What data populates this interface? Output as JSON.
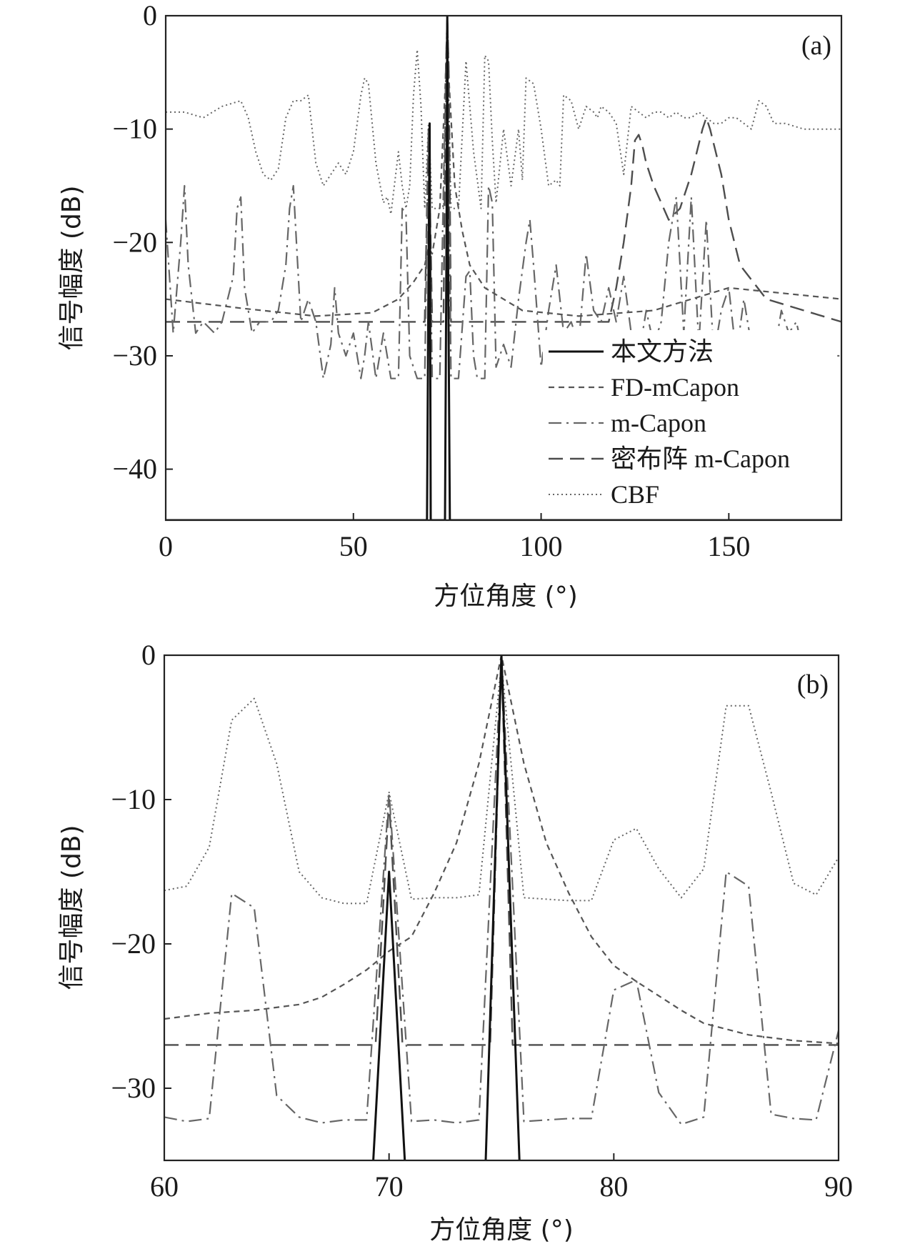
{
  "chart_data": [
    {
      "type": "line",
      "panel_label": "(a)",
      "xlabel": "方位角度 (°)",
      "ylabel": "信号幅度 (dB)",
      "xlim": [
        0,
        180
      ],
      "ylim": [
        -44.5,
        0
      ],
      "xticks": [
        0,
        50,
        100,
        150
      ],
      "yticks": [
        0,
        -10,
        -20,
        -30,
        -40
      ],
      "grid": false,
      "legend": "lower-right",
      "series": [
        {
          "name": "本文方法",
          "style": "solid",
          "color": "#111111",
          "x": [
            0,
            69.6,
            70.0,
            70.3,
            70.6,
            72.5,
            72.9,
            74.4,
            74.8,
            75.0,
            75.2,
            75.7,
            76.2,
            180
          ],
          "y": [
            -44.5,
            -44.5,
            -23,
            -9.5,
            -44.5,
            -44.5,
            -44.5,
            -44.5,
            -20,
            0,
            -20,
            -44.5,
            -44.5,
            -44.5
          ]
        },
        {
          "name": "FD-mCapon",
          "style": "dashed-short",
          "color": "#555555",
          "x": [
            0,
            20,
            40,
            55,
            62,
            66,
            69,
            70,
            71,
            73,
            74.5,
            75,
            75.5,
            77,
            79,
            81,
            85,
            95,
            110,
            130,
            150,
            165,
            180
          ],
          "y": [
            -25,
            -25.8,
            -26.5,
            -26.2,
            -25,
            -23.5,
            -22,
            -20.5,
            -21,
            -17,
            -6,
            0,
            -6,
            -15,
            -19,
            -22,
            -24,
            -26,
            -26.5,
            -26,
            -24,
            -24.5,
            -25
          ]
        },
        {
          "name": "m-Capon",
          "style": "dash-dot",
          "color": "#666666",
          "x": [
            0,
            2,
            4,
            5,
            6,
            8,
            10,
            13,
            15,
            18,
            19,
            20,
            21,
            23,
            25,
            28,
            30,
            32,
            33,
            34,
            35,
            36,
            38,
            40,
            42,
            44,
            45,
            46,
            48,
            50,
            52,
            53,
            54,
            56,
            58,
            60,
            62,
            63,
            64,
            65,
            67,
            69,
            70,
            71,
            72,
            73,
            74,
            75,
            76,
            77,
            78,
            80,
            81,
            82,
            83,
            85,
            86,
            87,
            88,
            90,
            92,
            94,
            96,
            97,
            98,
            100,
            102,
            104,
            106,
            108,
            110,
            112,
            114,
            116,
            118,
            120,
            122,
            124,
            126,
            128,
            130,
            132,
            134,
            136,
            138,
            140,
            142,
            144,
            146,
            148,
            150,
            152,
            154,
            156,
            158,
            160,
            162,
            164,
            166,
            168,
            170,
            172,
            174,
            176,
            178,
            180
          ],
          "y": [
            -18,
            -28,
            -20,
            -15,
            -22,
            -28,
            -27,
            -28,
            -27,
            -23,
            -17,
            -16,
            -24,
            -28,
            -27,
            -27,
            -26,
            -22,
            -17,
            -15,
            -21,
            -27,
            -25,
            -27,
            -32,
            -29,
            -24,
            -28,
            -30,
            -28,
            -32,
            -30,
            -27,
            -32,
            -28,
            -32,
            -32,
            -17,
            -17.5,
            -30,
            -32,
            -32,
            -10,
            -32,
            -32,
            -32,
            -15,
            0,
            -32,
            -32,
            -32,
            -23,
            -22.5,
            -30,
            -32,
            -32,
            -15,
            -16.5,
            -31,
            -29,
            -31,
            -25,
            -20,
            -18,
            -22,
            -31,
            -26,
            -22,
            -28,
            -27,
            -29,
            -21,
            -26,
            -27,
            -24,
            -27,
            -23,
            -28,
            -30,
            -26,
            -29,
            -27,
            -20,
            -16,
            -28,
            -16,
            -29,
            -18,
            -30,
            -26,
            -24,
            -30,
            -25,
            -29,
            -28,
            -30,
            -30,
            -26,
            -28,
            -27,
            -30,
            -29,
            -29,
            -28,
            -30,
            -30
          ]
        },
        {
          "name": "密布阵 m-Capon",
          "style": "dashed-long",
          "color": "#4d4d4d",
          "x": [
            0,
            30,
            60,
            69,
            70,
            71,
            72,
            74,
            74.6,
            75,
            75.4,
            76,
            78,
            90,
            110,
            118,
            120,
            122,
            124,
            125,
            126,
            127,
            128,
            130,
            134,
            137,
            140,
            143,
            144,
            145,
            148,
            150,
            153,
            160,
            170,
            180
          ],
          "y": [
            -27,
            -27,
            -27,
            -27,
            -10,
            -27,
            -27,
            -27,
            -5,
            0,
            -5,
            -27,
            -27,
            -27,
            -27,
            -27,
            -24,
            -20,
            -15,
            -11,
            -10.5,
            -11.5,
            -13,
            -15,
            -18,
            -17,
            -14,
            -10,
            -9,
            -10,
            -14,
            -18,
            -22,
            -25,
            -26,
            -27
          ]
        },
        {
          "name": "CBF",
          "style": "dotted",
          "color": "#666666",
          "x": [
            0,
            5,
            10,
            15,
            20,
            22,
            24,
            26,
            28,
            30,
            32,
            34,
            36,
            38,
            40,
            42,
            44,
            46,
            48,
            50,
            52,
            53,
            54,
            56,
            58,
            59,
            60,
            62,
            63,
            64,
            65,
            66,
            67,
            68,
            69,
            70,
            71,
            72,
            73,
            74,
            75,
            76,
            77,
            78,
            80,
            82,
            84,
            85,
            86,
            87,
            88,
            90,
            92,
            94,
            95,
            96,
            98,
            100,
            102,
            104,
            105,
            106,
            108,
            110,
            112,
            114,
            115,
            116,
            118,
            120,
            122,
            124,
            126,
            128,
            130,
            132,
            134,
            136,
            138,
            140,
            142,
            144,
            146,
            148,
            150,
            152,
            154,
            156,
            158,
            160,
            162,
            165,
            170,
            175,
            180
          ],
          "y": [
            -8.5,
            -8.5,
            -9,
            -8,
            -7.5,
            -9,
            -12,
            -14,
            -14.5,
            -13.5,
            -9,
            -7.5,
            -7.5,
            -7,
            -13,
            -15,
            -14,
            -13,
            -14,
            -12,
            -7,
            -5.5,
            -6,
            -13,
            -16.5,
            -16,
            -17.5,
            -12,
            -15,
            -17,
            -15,
            -7,
            -3,
            -8,
            -17,
            -9.5,
            -17,
            -17,
            -17,
            -17,
            -0.5,
            -17,
            -17,
            -17,
            -4,
            -12,
            -17,
            -3.5,
            -4,
            -11,
            -16.5,
            -10,
            -15,
            -10,
            -14.5,
            -5.5,
            -6,
            -10,
            -15,
            -14.5,
            -15,
            -7,
            -7.5,
            -10,
            -8,
            -8.5,
            -9,
            -8,
            -8.5,
            -9.5,
            -14,
            -8,
            -8.5,
            -9,
            -8.5,
            -8.5,
            -9,
            -8.5,
            -9,
            -9,
            -8.5,
            -9,
            -9.5,
            -9.5,
            -9,
            -9,
            -9.5,
            -10,
            -7.5,
            -8,
            -9.5,
            -9.5,
            -10,
            -10,
            -10
          ]
        }
      ]
    },
    {
      "type": "line",
      "panel_label": "(b)",
      "xlabel": "方位角度 (°)",
      "ylabel": "信号幅度 (dB)",
      "xlim": [
        60,
        90
      ],
      "ylim": [
        -35,
        0
      ],
      "xticks": [
        60,
        70,
        80,
        90
      ],
      "yticks": [
        0,
        -10,
        -20,
        -30
      ],
      "grid": false,
      "series": [
        {
          "name": "本文方法",
          "style": "solid",
          "color": "#111111",
          "x": [
            69.3,
            70.0,
            70.7,
            74.3,
            75.0,
            75.8
          ],
          "y": [
            -35,
            -15,
            -35,
            -35,
            0,
            -35
          ],
          "breaks": [
            3
          ]
        },
        {
          "name": "FD-mCapon",
          "style": "dashed-short",
          "color": "#555555",
          "x": [
            60,
            62,
            64,
            66,
            67,
            68,
            69,
            70,
            71,
            72,
            73,
            74,
            75,
            76,
            77,
            78,
            79,
            80,
            81,
            82,
            83,
            84,
            86,
            88,
            90
          ],
          "y": [
            -25.2,
            -24.8,
            -24.6,
            -24.2,
            -23.7,
            -22.8,
            -21.8,
            -20.5,
            -19.5,
            -16.5,
            -13,
            -7.5,
            0,
            -7.5,
            -13,
            -16.5,
            -19.5,
            -21.5,
            -22.6,
            -23.6,
            -24.6,
            -25.5,
            -26.3,
            -26.7,
            -26.9
          ]
        },
        {
          "name": "m-Capon",
          "style": "dash-dot",
          "color": "#666666",
          "x": [
            60,
            61,
            62,
            63,
            64,
            65,
            66,
            67,
            68,
            69,
            70,
            71,
            72,
            73,
            74,
            75,
            76,
            77,
            78,
            79,
            80,
            81,
            82,
            83,
            84,
            85,
            86,
            87,
            88,
            89,
            90
          ],
          "y": [
            -32,
            -32.3,
            -32.1,
            -16.5,
            -17.5,
            -30.5,
            -32,
            -32.4,
            -32.2,
            -32.2,
            -9.5,
            -32.3,
            -32.2,
            -32.4,
            -32.2,
            0,
            -32.3,
            -32.2,
            -32.1,
            -32.1,
            -23.2,
            -22.5,
            -30.3,
            -32.5,
            -32,
            -15,
            -16,
            -31.8,
            -32.1,
            -32.2,
            -26
          ]
        },
        {
          "name": "密布阵 m-Capon",
          "style": "dashed-long",
          "color": "#4d4d4d",
          "x": [
            60,
            62,
            64,
            66,
            68,
            69.4,
            70,
            70.6,
            72,
            74,
            74.5,
            75,
            75.5,
            76,
            78,
            80,
            82,
            84,
            86,
            88,
            90
          ],
          "y": [
            -27,
            -27,
            -27,
            -27,
            -27,
            -27,
            -10,
            -27,
            -27,
            -27,
            -27,
            0,
            -27,
            -27,
            -27,
            -27,
            -27,
            -27,
            -27,
            -27,
            -27
          ]
        },
        {
          "name": "CBF",
          "style": "dotted",
          "color": "#666666",
          "x": [
            60,
            61,
            62,
            63,
            64,
            65,
            66,
            67,
            68,
            69,
            70,
            71,
            72,
            73,
            74,
            75,
            76,
            77,
            78,
            79,
            80,
            81,
            82,
            83,
            84,
            85,
            86,
            87,
            88,
            89,
            90
          ],
          "y": [
            -16.3,
            -16,
            -13.3,
            -4.5,
            -3,
            -7.5,
            -15,
            -16.8,
            -17.2,
            -17.2,
            -9.5,
            -16.9,
            -16.8,
            -16.8,
            -16.6,
            -0.5,
            -16.8,
            -16.9,
            -17,
            -17,
            -12.8,
            -12,
            -14.8,
            -16.8,
            -14.8,
            -3.5,
            -3.5,
            -9.5,
            -15.8,
            -16.6,
            -14
          ]
        }
      ]
    }
  ]
}
